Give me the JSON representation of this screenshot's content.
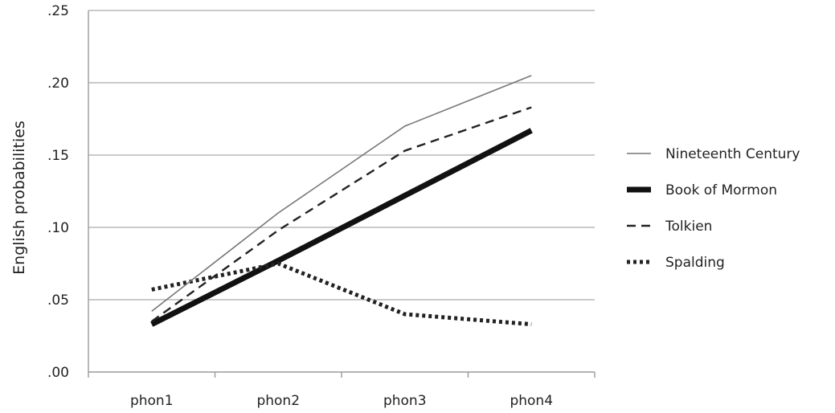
{
  "chart_data": {
    "type": "line",
    "title": "",
    "xlabel": "",
    "ylabel": "English probabilities",
    "categories": [
      "phon1",
      "phon2",
      "phon3",
      "phon4"
    ],
    "ylim": [
      0,
      0.25
    ],
    "yticks": [
      0,
      0.05,
      0.1,
      0.15,
      0.2,
      0.25
    ],
    "ytick_labels": [
      ".00",
      ".05",
      ".10",
      ".15",
      ".20",
      ".25"
    ],
    "grid": "horizontal",
    "legend": "right",
    "series": [
      {
        "name": "Nineteenth Century",
        "values": [
          0.042,
          0.11,
          0.17,
          0.205
        ],
        "style": "thin-solid",
        "color": "#777777"
      },
      {
        "name": "Book of Mormon",
        "values": [
          0.033,
          0.077,
          0.122,
          0.167
        ],
        "style": "thick-solid",
        "color": "#111111"
      },
      {
        "name": "Tolkien",
        "values": [
          0.035,
          0.098,
          0.153,
          0.183
        ],
        "style": "dashed",
        "color": "#222222"
      },
      {
        "name": "Spalding",
        "values": [
          0.057,
          0.075,
          0.04,
          0.033
        ],
        "style": "dotted",
        "color": "#222222"
      }
    ]
  }
}
